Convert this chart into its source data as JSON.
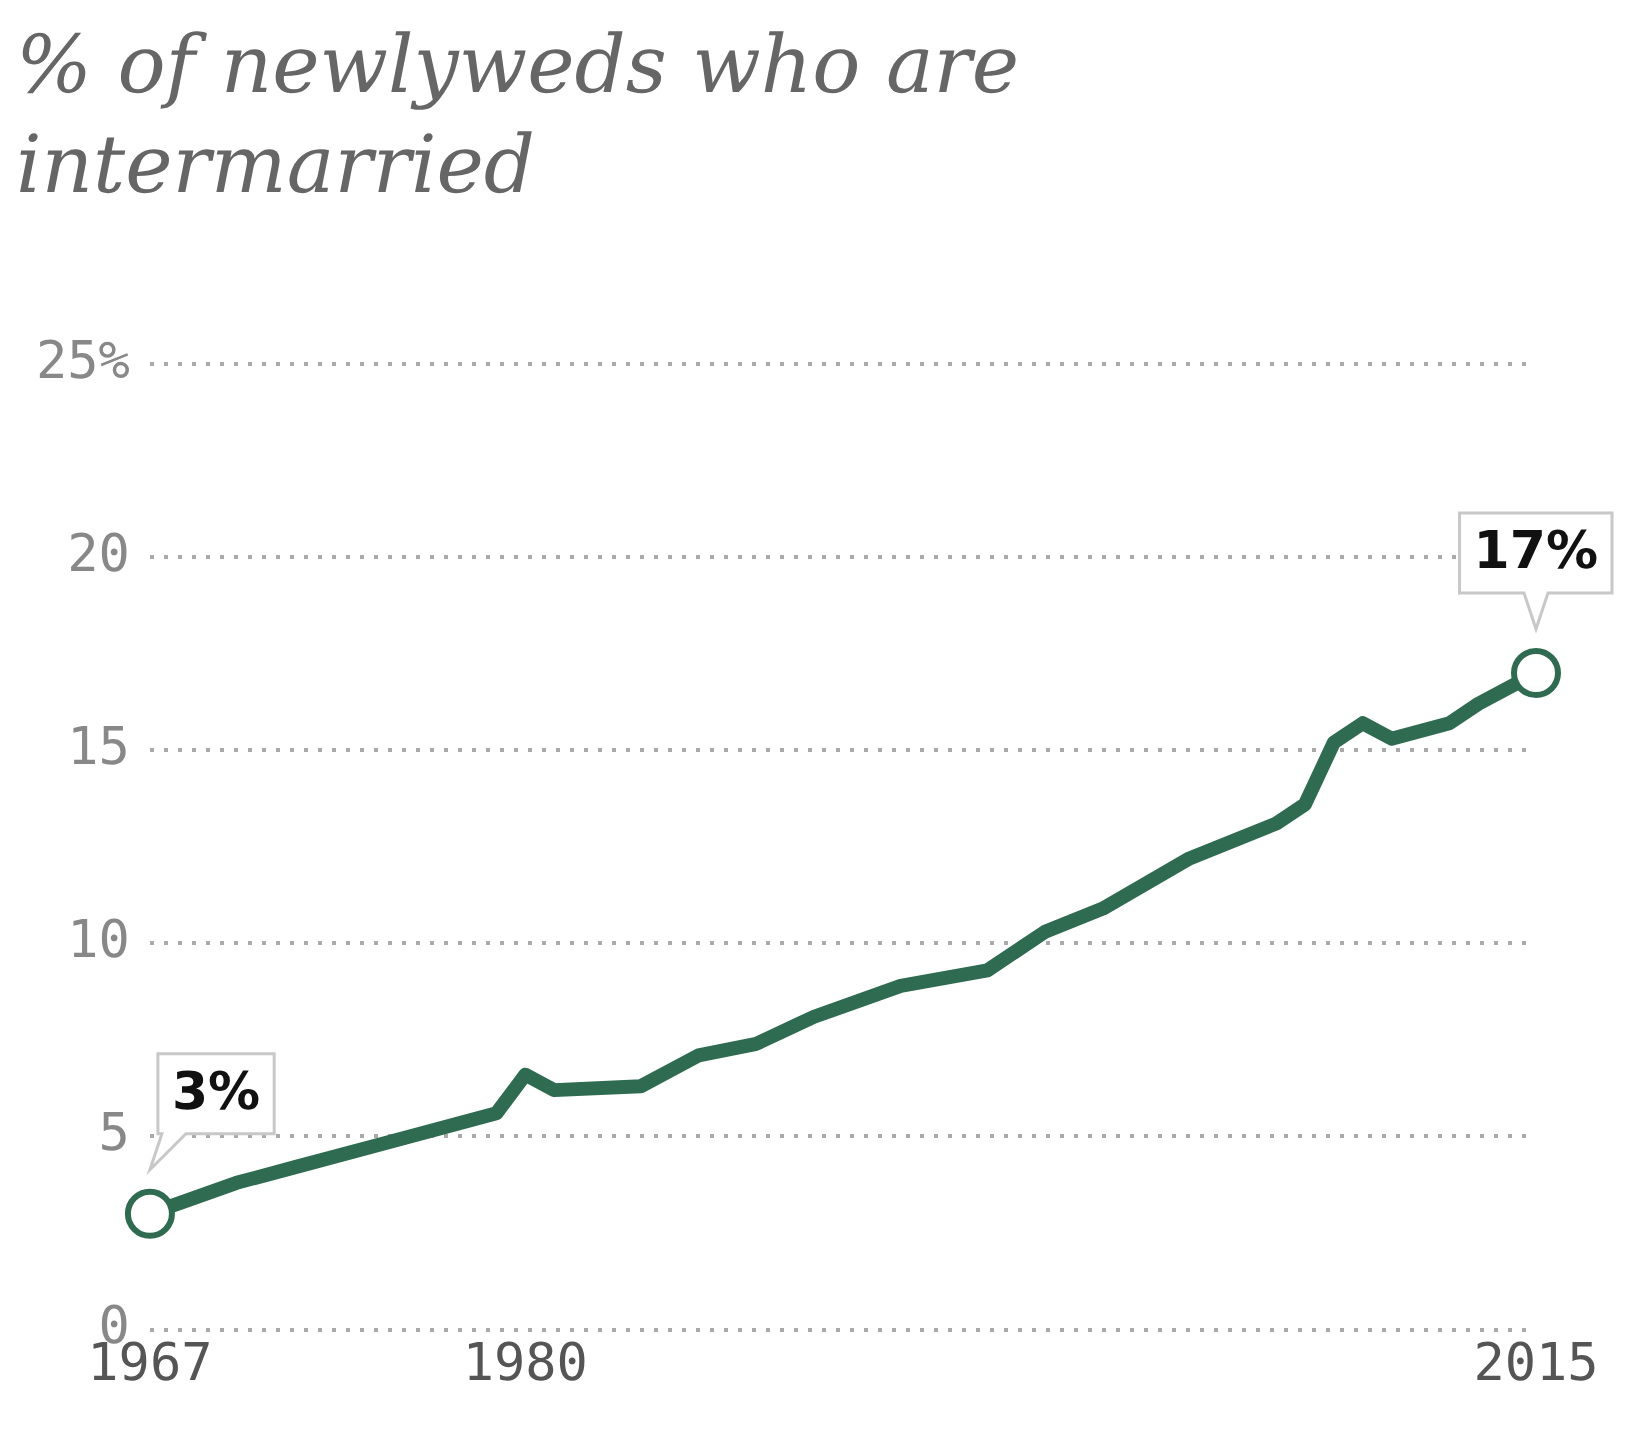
{
  "chart_data": {
    "type": "line",
    "title": "% of newlyweds who are intermarried",
    "x": [
      1967,
      1970,
      1972,
      1975,
      1977,
      1979,
      1980,
      1981,
      1984,
      1986,
      1988,
      1990,
      1993,
      1996,
      1998,
      2000,
      2003,
      2006,
      2007,
      2008,
      2009,
      2010,
      2012,
      2013,
      2015
    ],
    "series": [
      {
        "color": "#2e6b50",
        "values": [
          3,
          3.8,
          4.2,
          4.8,
          5.2,
          5.6,
          6.6,
          6.2,
          6.3,
          7.1,
          7.4,
          8.1,
          8.9,
          9.3,
          10.3,
          10.9,
          12.2,
          13.1,
          13.6,
          15.2,
          15.7,
          15.3,
          15.7,
          16.2,
          17
        ],
        "value_labels": [
          "3%",
          null,
          null,
          null,
          null,
          null,
          null,
          null,
          null,
          null,
          null,
          null,
          null,
          null,
          null,
          null,
          null,
          null,
          null,
          null,
          null,
          null,
          null,
          null,
          "17%"
        ]
      }
    ],
    "xlim": [
      1967,
      2015
    ],
    "xticks": [
      1967,
      1980,
      2015
    ],
    "ylim": [
      0,
      25
    ],
    "yticks": [
      0,
      5,
      10,
      15,
      20,
      {
        "value": 25,
        "label": "25%"
      }
    ],
    "grid": "y",
    "legend": false
  }
}
